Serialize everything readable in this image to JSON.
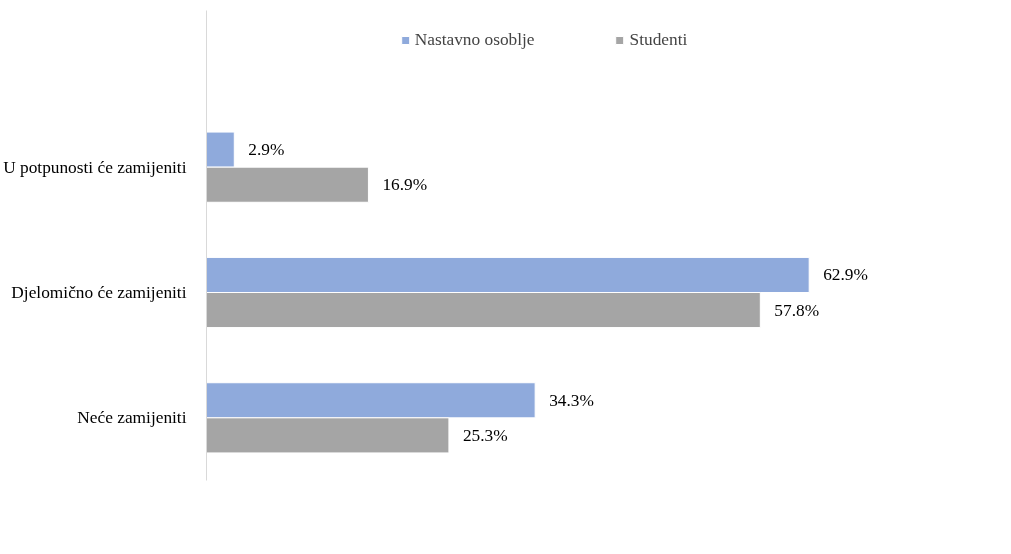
{
  "chart_data": {
    "type": "bar",
    "orientation": "horizontal",
    "categories": [
      "U potpunosti će zamijeniti",
      "Djelomično će zamijeniti",
      "Neće zamijeniti"
    ],
    "series": [
      {
        "name": "Nastavno osoblje",
        "color": "#8faadc",
        "values": [
          2.9,
          62.9,
          34.3
        ],
        "value_labels": [
          "2.9%",
          "62.9%",
          "34.3%"
        ]
      },
      {
        "name": "Studenti",
        "color": "#a5a5a5",
        "values": [
          16.9,
          57.8,
          25.3
        ],
        "value_labels": [
          "16.9%",
          "57.8%",
          "25.3%"
        ]
      }
    ],
    "legend": "top",
    "grid": false
  }
}
